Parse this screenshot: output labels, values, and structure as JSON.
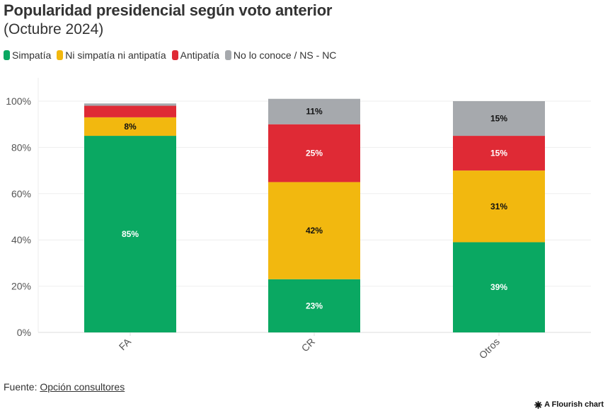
{
  "header": {
    "title": "Popularidad presidencial según voto anterior",
    "subtitle": "(Octubre 2024)"
  },
  "legend": [
    {
      "label": "Simpatía",
      "color": "#0aa862"
    },
    {
      "label": "Ni simpatía ni antipatía",
      "color": "#f2b80f"
    },
    {
      "label": "Antipatía",
      "color": "#df2a35"
    },
    {
      "label": "No lo conoce / NS - NC",
      "color": "#a6a9ad"
    }
  ],
  "footer": {
    "source_prefix": "Fuente: ",
    "source_link": "Opción consultores",
    "credit": "A Flourish chart"
  },
  "chart_data": {
    "type": "bar",
    "stacked": true,
    "title": "Popularidad presidencial según voto anterior",
    "subtitle": "(Octubre 2024)",
    "xlabel": "",
    "ylabel": "",
    "categories": [
      "FA",
      "CR",
      "Otros"
    ],
    "ylim": [
      0,
      100
    ],
    "yticks": [
      0,
      20,
      40,
      60,
      80,
      100
    ],
    "ytick_labels": [
      "0%",
      "20%",
      "40%",
      "60%",
      "80%",
      "100%"
    ],
    "grid": true,
    "legend_position": "top-left",
    "series": [
      {
        "name": "Simpatía",
        "color": "#0aa862",
        "label_color": "#ffffff",
        "values": [
          85,
          23,
          39
        ],
        "labels": [
          "85%",
          "23%",
          "39%"
        ]
      },
      {
        "name": "Ni simpatía ni antipatía",
        "color": "#f2b80f",
        "label_color": "#111111",
        "values": [
          8,
          42,
          31
        ],
        "labels": [
          "8%",
          "42%",
          "31%"
        ]
      },
      {
        "name": "Antipatía",
        "color": "#df2a35",
        "label_color": "#ffffff",
        "values": [
          5,
          25,
          15
        ],
        "labels": [
          "",
          "25%",
          "15%"
        ]
      },
      {
        "name": "No lo conoce / NS - NC",
        "color": "#a6a9ad",
        "label_color": "#111111",
        "values": [
          1,
          11,
          15
        ],
        "labels": [
          "",
          "11%",
          "15%"
        ]
      }
    ]
  }
}
